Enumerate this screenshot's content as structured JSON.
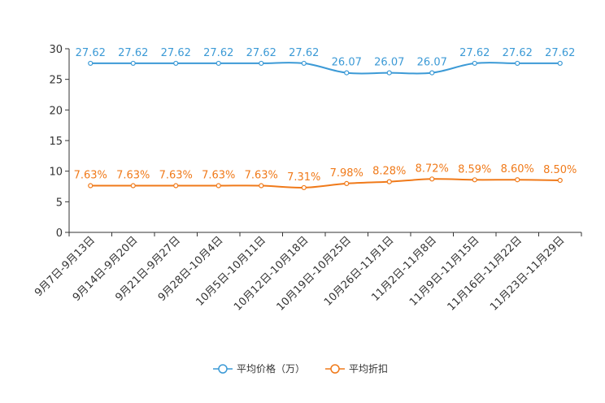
{
  "chart_data": {
    "type": "line",
    "title": "",
    "xlabel": "",
    "ylabel": "",
    "ylim": [
      0,
      30
    ],
    "yticks": [
      "0",
      "5",
      "10",
      "15",
      "20",
      "25",
      "30"
    ],
    "grid": false,
    "legend_position": "bottom",
    "categories": [
      "9月7日-9月13日",
      "9月14日-9月20日",
      "9月21日-9月27日",
      "9月28日-10月4日",
      "10月5日-10月11日",
      "10月12日-10月18日",
      "10月19日-10月25日",
      "10月26日-11月1日",
      "11月2日-11月8日",
      "11月9日-11月15日",
      "11月16日-11月22日",
      "11月23日-11月29日"
    ],
    "series": [
      {
        "name": "平均价格（万）",
        "color": "#3c9ad6",
        "values": [
          27.62,
          27.62,
          27.62,
          27.62,
          27.62,
          27.62,
          26.07,
          26.07,
          26.07,
          27.62,
          27.62,
          27.62
        ],
        "labels": [
          "27.62",
          "27.62",
          "27.62",
          "27.62",
          "27.62",
          "27.62",
          "26.07",
          "26.07",
          "26.07",
          "27.62",
          "27.62",
          "27.62"
        ]
      },
      {
        "name": "平均折扣",
        "color": "#f07a1a",
        "values": [
          7.63,
          7.63,
          7.63,
          7.63,
          7.63,
          7.31,
          7.98,
          8.28,
          8.72,
          8.59,
          8.6,
          8.5
        ],
        "labels": [
          "7.63%",
          "7.63%",
          "7.63%",
          "7.63%",
          "7.63%",
          "7.31%",
          "7.98%",
          "8.28%",
          "8.72%",
          "8.59%",
          "8.60%",
          "8.50%"
        ]
      }
    ]
  }
}
